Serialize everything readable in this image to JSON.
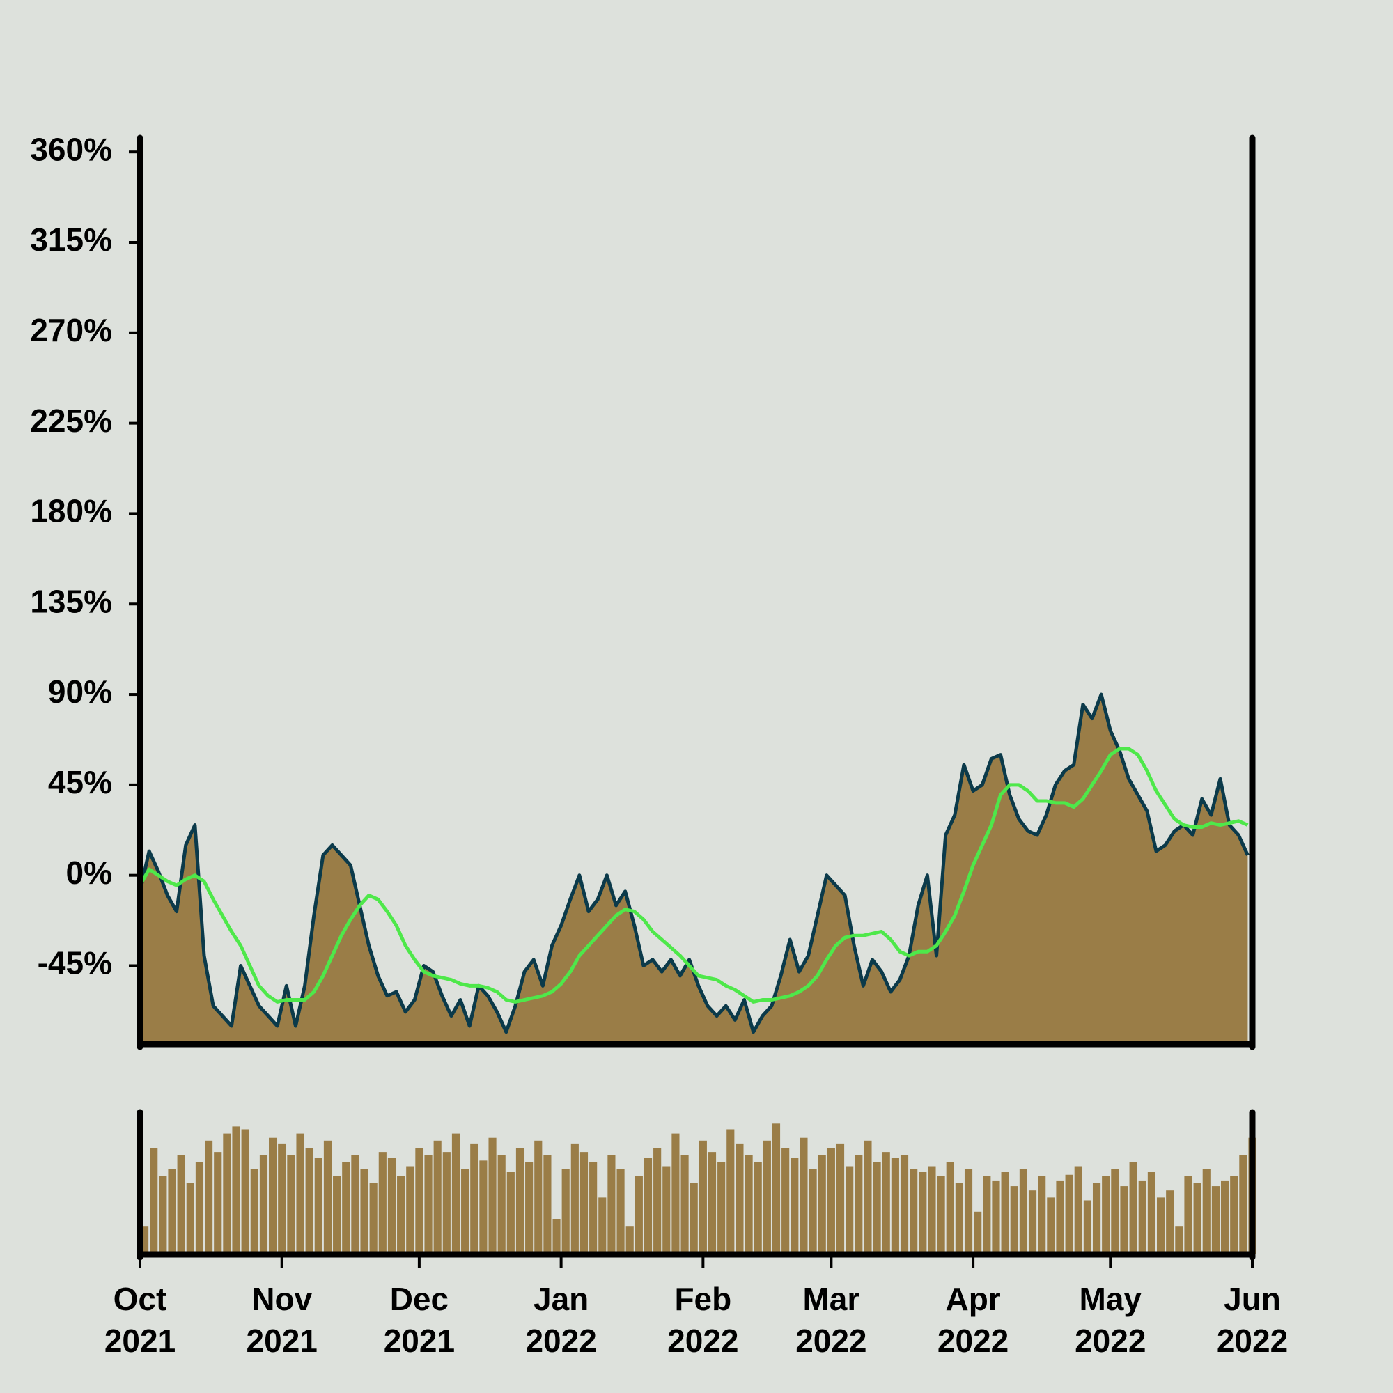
{
  "chart_data": [
    {
      "type": "area",
      "x": [
        0,
        2,
        4,
        6,
        8,
        10,
        12,
        14,
        16,
        18,
        20,
        22,
        24,
        26,
        28,
        30,
        32,
        34,
        36,
        38,
        40,
        42,
        44,
        46,
        48,
        50,
        52,
        54,
        56,
        58,
        60,
        62,
        64,
        66,
        68,
        70,
        72,
        74,
        76,
        78,
        80,
        82,
        84,
        86,
        88,
        90,
        92,
        94,
        96,
        98,
        100,
        102,
        104,
        106,
        108,
        110,
        112,
        114,
        116,
        118,
        120,
        122,
        124,
        126,
        128,
        130,
        132,
        134,
        136,
        138,
        140,
        142,
        144,
        146,
        148,
        150,
        152,
        154,
        156,
        158,
        160,
        162,
        164,
        166,
        168,
        170,
        172,
        174,
        176,
        178,
        180,
        182,
        184,
        186,
        188,
        190,
        192,
        194,
        196,
        198,
        200,
        202,
        204,
        206,
        208,
        210,
        212,
        214,
        216,
        218,
        220,
        222,
        224,
        226,
        228,
        230,
        232,
        234,
        236,
        238,
        240,
        242
      ],
      "series": [
        {
          "color": "#9a7d47",
          "line_color": "#0b3a4a",
          "values": [
            -8,
            12,
            2,
            -10,
            -18,
            15,
            25,
            -40,
            -65,
            -70,
            -75,
            -45,
            -55,
            -65,
            -70,
            -75,
            -55,
            -75,
            -55,
            -20,
            10,
            15,
            10,
            5,
            -15,
            -35,
            -50,
            -60,
            -58,
            -68,
            -62,
            -45,
            -48,
            -60,
            -70,
            -62,
            -75,
            -55,
            -60,
            -68,
            -78,
            -65,
            -48,
            -42,
            -55,
            -35,
            -25,
            -12,
            0,
            -18,
            -12,
            0,
            -15,
            -8,
            -25,
            -45,
            -42,
            -48,
            -42,
            -50,
            -42,
            -55,
            -65,
            -70,
            -65,
            -72,
            -62,
            -78,
            -70,
            -65,
            -50,
            -32,
            -48,
            -40,
            -20,
            0,
            -5,
            -10,
            -35,
            -55,
            -42,
            -48,
            -58,
            -52,
            -40,
            -15,
            0,
            -40,
            20,
            30,
            55,
            42,
            45,
            58,
            60,
            40,
            28,
            22,
            20,
            30,
            45,
            52,
            55,
            85,
            78,
            90,
            72,
            62,
            48,
            40,
            32,
            12,
            15,
            22,
            25,
            20,
            38,
            30,
            48,
            25,
            20,
            10
          ]
        },
        {
          "type": "line",
          "color": "#4ee84a",
          "values": [
            -5,
            3,
            0,
            -3,
            -5,
            -2,
            0,
            -3,
            -12,
            -20,
            -28,
            -35,
            -45,
            -55,
            -60,
            -63,
            -62,
            -62,
            -62,
            -58,
            -50,
            -40,
            -30,
            -22,
            -15,
            -10,
            -12,
            -18,
            -25,
            -35,
            -42,
            -48,
            -50,
            -51,
            -52,
            -54,
            -55,
            -55,
            -56,
            -58,
            -62,
            -63,
            -62,
            -61,
            -60,
            -58,
            -54,
            -48,
            -40,
            -35,
            -30,
            -25,
            -20,
            -17,
            -18,
            -22,
            -28,
            -32,
            -36,
            -40,
            -45,
            -50,
            -51,
            -52,
            -55,
            -57,
            -60,
            -63,
            -62,
            -62,
            -61,
            -60,
            -58,
            -55,
            -50,
            -42,
            -35,
            -31,
            -30,
            -30,
            -29,
            -28,
            -32,
            -38,
            -40,
            -38,
            -38,
            -35,
            -28,
            -20,
            -8,
            5,
            15,
            25,
            40,
            45,
            45,
            42,
            37,
            37,
            36,
            36,
            34,
            38,
            45,
            52,
            60,
            63,
            63,
            60,
            52,
            42,
            35,
            28,
            25,
            24,
            24,
            26,
            25,
            26,
            27,
            25
          ]
        }
      ],
      "xlim": [
        0,
        243
      ],
      "ylim": [
        -84,
        367
      ],
      "yticks": [
        {
          "value": -45,
          "label": "-45%"
        },
        {
          "value": 0,
          "label": "0%"
        },
        {
          "value": 45,
          "label": "45%"
        },
        {
          "value": 90,
          "label": "90%"
        },
        {
          "value": 135,
          "label": "135%"
        },
        {
          "value": 180,
          "label": "180%"
        },
        {
          "value": 225,
          "label": "225%"
        },
        {
          "value": 270,
          "label": "270%"
        },
        {
          "value": 315,
          "label": "315%"
        },
        {
          "value": 360,
          "label": "360%"
        }
      ]
    },
    {
      "type": "bar",
      "color": "#9a7d47",
      "x": [
        0,
        2,
        4,
        6,
        8,
        10,
        12,
        14,
        16,
        18,
        20,
        22,
        24,
        26,
        28,
        30,
        32,
        34,
        36,
        38,
        40,
        42,
        44,
        46,
        48,
        50,
        52,
        54,
        56,
        58,
        60,
        62,
        64,
        66,
        68,
        70,
        72,
        74,
        76,
        78,
        80,
        82,
        84,
        86,
        88,
        90,
        92,
        94,
        96,
        98,
        100,
        102,
        104,
        106,
        108,
        110,
        112,
        114,
        116,
        118,
        120,
        122,
        124,
        126,
        128,
        130,
        132,
        134,
        136,
        138,
        140,
        142,
        144,
        146,
        148,
        150,
        152,
        154,
        156,
        158,
        160,
        162,
        164,
        166,
        168,
        170,
        172,
        174,
        176,
        178,
        180,
        182,
        184,
        186,
        188,
        190,
        192,
        194,
        196,
        198,
        200,
        202,
        204,
        206,
        208,
        210,
        212,
        214,
        216,
        218,
        220,
        222,
        224,
        226,
        228,
        230,
        232,
        234,
        236,
        238,
        240,
        242
      ],
      "values": [
        20,
        75,
        55,
        60,
        70,
        50,
        65,
        80,
        72,
        85,
        90,
        88,
        60,
        70,
        82,
        78,
        70,
        85,
        75,
        68,
        80,
        55,
        65,
        70,
        60,
        50,
        72,
        68,
        55,
        62,
        75,
        70,
        80,
        72,
        85,
        60,
        78,
        66,
        82,
        70,
        58,
        75,
        65,
        80,
        70,
        25,
        60,
        78,
        72,
        65,
        40,
        70,
        60,
        20,
        55,
        68,
        75,
        62,
        85,
        70,
        50,
        80,
        72,
        65,
        88,
        78,
        70,
        65,
        80,
        92,
        75,
        68,
        82,
        60,
        70,
        75,
        78,
        62,
        70,
        80,
        65,
        72,
        68,
        70,
        60,
        58,
        62,
        55,
        65,
        50,
        60,
        30,
        55,
        52,
        58,
        48,
        60,
        45,
        55,
        40,
        52,
        56,
        62,
        38,
        50,
        55,
        60,
        48,
        65,
        52,
        58,
        40,
        45,
        20,
        55,
        50,
        60,
        48,
        52,
        55,
        70,
        82
      ],
      "xlim": [
        0,
        243
      ],
      "ylim": [
        0,
        100
      ],
      "xticks": [
        {
          "value": 0,
          "label": "Oct 2021"
        },
        {
          "value": 31,
          "label": "Nov 2021"
        },
        {
          "value": 61,
          "label": "Dec 2021"
        },
        {
          "value": 92,
          "label": "Jan 2022"
        },
        {
          "value": 123,
          "label": "Feb 2022"
        },
        {
          "value": 151,
          "label": "Mar 2022"
        },
        {
          "value": 182,
          "label": "Apr 2022"
        },
        {
          "value": 212,
          "label": "May 2022"
        },
        {
          "value": 243,
          "label": "Jun 2022"
        }
      ]
    }
  ]
}
